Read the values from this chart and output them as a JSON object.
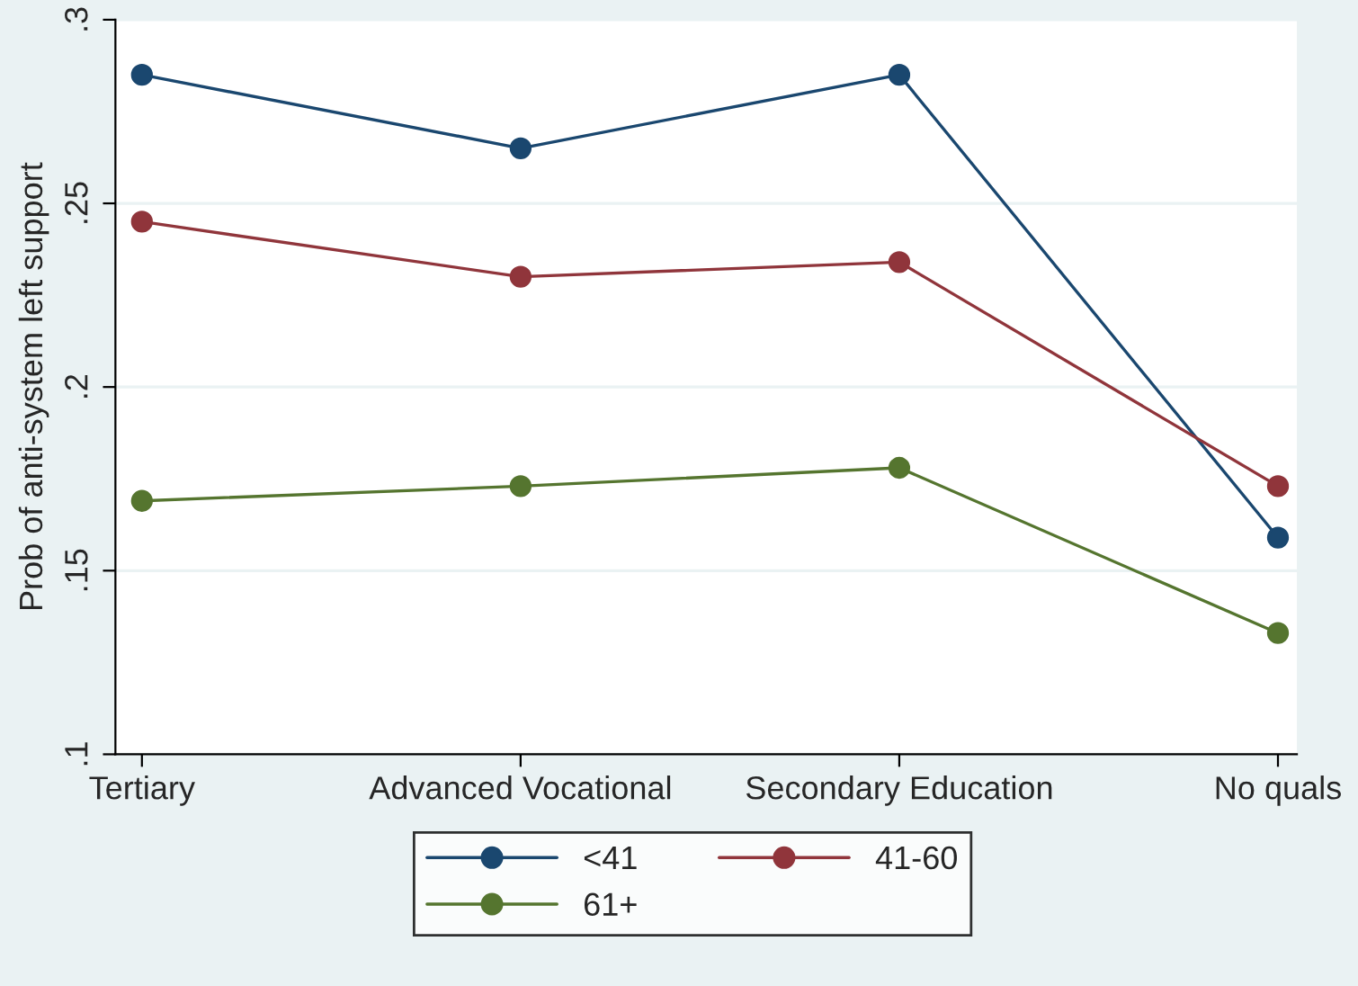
{
  "chart_data": {
    "type": "line",
    "ylabel": "Prob of anti-system left support",
    "categories": [
      "Tertiary",
      "Advanced Vocational",
      "Secondary Education",
      "No quals"
    ],
    "series": [
      {
        "name": "<41",
        "color": "#1a476f",
        "values": [
          0.285,
          0.265,
          0.285,
          0.159
        ]
      },
      {
        "name": "41-60",
        "color": "#90353b",
        "values": [
          0.245,
          0.23,
          0.234,
          0.173
        ]
      },
      {
        "name": "61+",
        "color": "#55752f",
        "values": [
          0.169,
          0.173,
          0.178,
          0.133
        ]
      }
    ],
    "ylim": [
      0.1,
      0.3
    ],
    "yticks": [
      {
        "value": 0.1,
        "label": ".1"
      },
      {
        "value": 0.15,
        "label": ".15"
      },
      {
        "value": 0.2,
        "label": ".2"
      },
      {
        "value": 0.25,
        "label": ".25"
      },
      {
        "value": 0.3,
        "label": ".3"
      }
    ],
    "grid": "y",
    "legend": "bottom",
    "marker": "circle",
    "line_style": "solid"
  }
}
